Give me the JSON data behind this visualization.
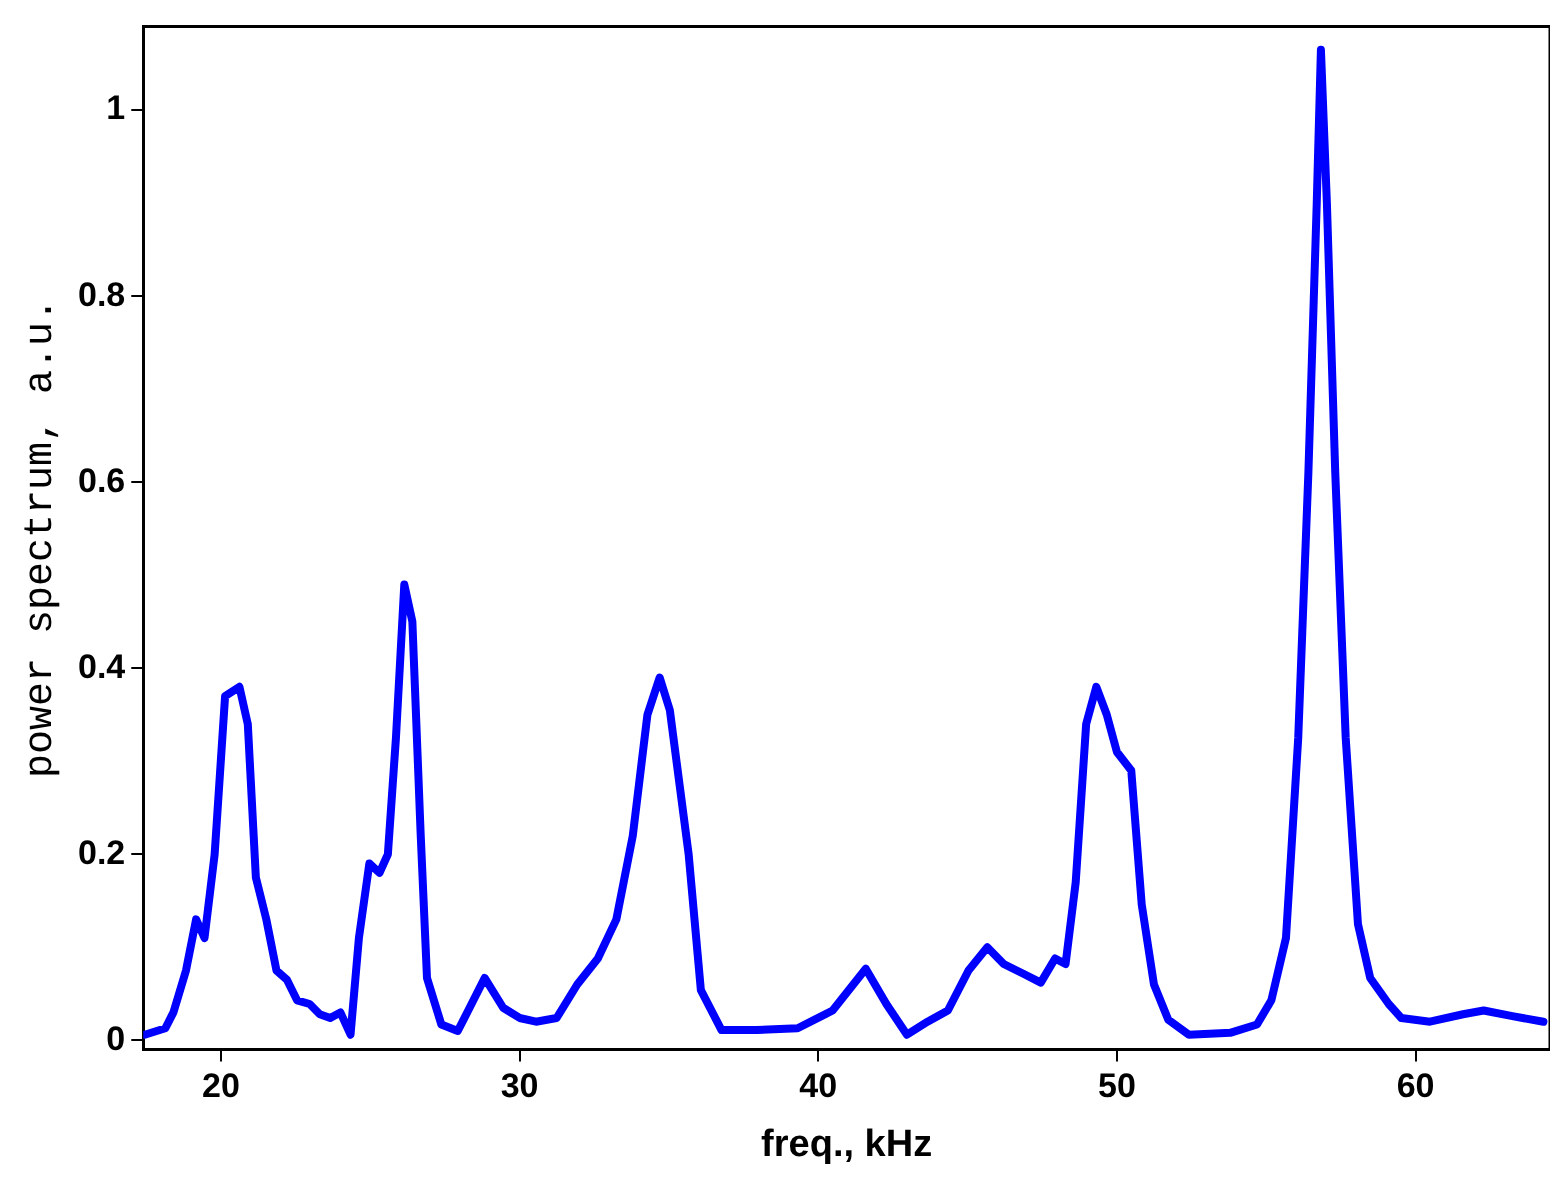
{
  "chart_data": {
    "type": "line",
    "xlabel": "freq., kHz",
    "ylabel": "power spectrum, a.u.",
    "xlim": [
      17.4,
      64.5
    ],
    "xticks": [
      20,
      30,
      40,
      50,
      60
    ],
    "ylim": [
      -0.01,
      1.09
    ],
    "yticks": [
      0,
      0.2,
      0.4,
      0.6,
      0.8,
      1
    ],
    "grid": false,
    "legend": false,
    "marker": "none",
    "line_style": "solid",
    "series": [
      {
        "color": "#0000ff",
        "x": [
          17.45,
          18.14,
          18.41,
          18.83,
          19.17,
          19.45,
          19.79,
          20.14,
          20.62,
          20.9,
          21.17,
          21.52,
          21.86,
          22.21,
          22.55,
          22.97,
          23.31,
          23.66,
          24.0,
          24.34,
          24.62,
          24.97,
          25.31,
          25.59,
          25.86,
          26.14,
          26.41,
          26.69,
          26.9,
          27.38,
          27.93,
          28.28,
          28.83,
          29.45,
          30.0,
          30.55,
          31.24,
          31.93,
          32.62,
          33.24,
          33.79,
          34.28,
          34.69,
          35.03,
          35.66,
          36.07,
          36.76,
          37.93,
          39.31,
          40.48,
          41.59,
          42.28,
          42.97,
          43.66,
          44.34,
          45.03,
          45.66,
          46.21,
          46.9,
          47.45,
          47.93,
          48.28,
          48.62,
          48.97,
          49.31,
          49.66,
          50.0,
          50.48,
          50.83,
          51.24,
          51.72,
          52.41,
          53.79,
          54.69,
          55.17,
          55.66,
          56.07,
          56.41,
          56.69,
          56.83,
          57.03,
          57.31,
          57.66,
          58.07,
          58.48,
          59.1,
          59.52,
          60.48,
          61.59,
          62.28,
          63.24,
          64.28
        ],
        "values": [
          0.006,
          0.013,
          0.03,
          0.075,
          0.13,
          0.11,
          0.2,
          0.37,
          0.38,
          0.34,
          0.175,
          0.13,
          0.075,
          0.065,
          0.043,
          0.039,
          0.028,
          0.024,
          0.03,
          0.006,
          0.11,
          0.19,
          0.18,
          0.2,
          0.325,
          0.49,
          0.45,
          0.22,
          0.067,
          0.017,
          0.01,
          0.032,
          0.067,
          0.035,
          0.024,
          0.02,
          0.024,
          0.06,
          0.088,
          0.13,
          0.22,
          0.35,
          0.39,
          0.355,
          0.2,
          0.054,
          0.011,
          0.011,
          0.013,
          0.032,
          0.077,
          0.039,
          0.006,
          0.02,
          0.032,
          0.075,
          0.1,
          0.082,
          0.071,
          0.062,
          0.088,
          0.082,
          0.17,
          0.34,
          0.38,
          0.35,
          0.31,
          0.29,
          0.146,
          0.06,
          0.022,
          0.006,
          0.008,
          0.017,
          0.043,
          0.11,
          0.325,
          0.61,
          0.9,
          1.065,
          0.9,
          0.61,
          0.325,
          0.125,
          0.067,
          0.039,
          0.024,
          0.02,
          0.028,
          0.032,
          0.026,
          0.02
        ]
      }
    ]
  }
}
